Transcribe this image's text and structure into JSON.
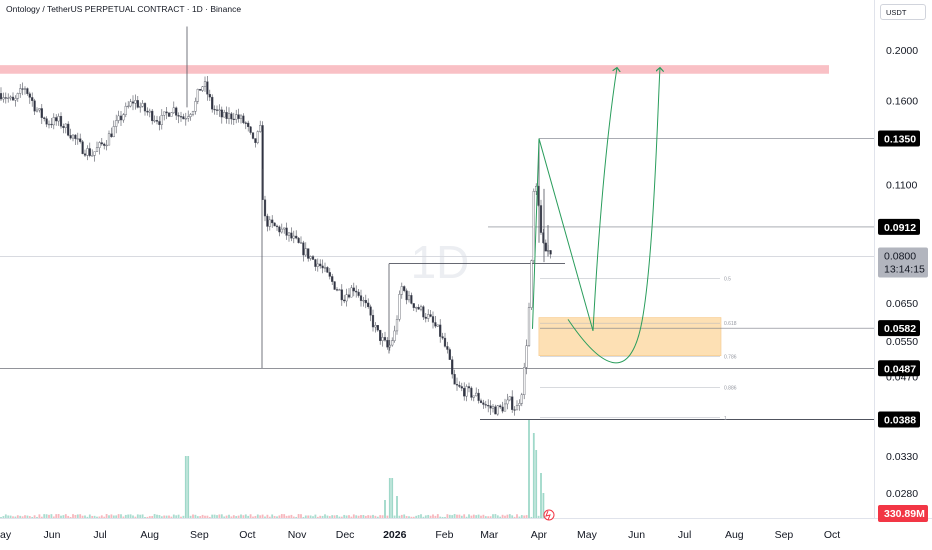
{
  "header": {
    "symbol_title": "Ontology / TetherUS PERPETUAL CONTRACT · 1D · Binance",
    "currency": "USDT"
  },
  "watermark": "1D",
  "colors": {
    "up": "#089981",
    "down": "#f23645",
    "candle": "#787b86",
    "resistance_zone": "#f9c0c5",
    "target_zone": "#fde0b4",
    "projection": "#2a9d5c",
    "label_bg": "#000000",
    "last_price_bg": "#b2b5be",
    "volume_bg": "#f23645"
  },
  "chart_data": {
    "type": "candlestick",
    "scale": "log",
    "y_ticks": [
      "0.2000",
      "0.1600",
      "0.1350",
      "0.1100",
      "0.0912",
      "0.0800",
      "0.0650",
      "0.0582",
      "0.0550",
      "0.0487",
      "0.0470",
      "0.0388",
      "0.0330",
      "0.0280"
    ],
    "x_ticks": [
      "ay",
      "Jun",
      "Jul",
      "Aug",
      "Sep",
      "Oct",
      "Nov",
      "Dec",
      "2026",
      "Feb",
      "Mar",
      "Apr",
      "May",
      "Jun",
      "Jul",
      "Aug",
      "Sep",
      "Oct"
    ],
    "price_path": [
      [
        "2025-05-01",
        0.165
      ],
      [
        "2025-05-08",
        0.158
      ],
      [
        "2025-05-15",
        0.17
      ],
      [
        "2025-05-22",
        0.154
      ],
      [
        "2025-05-29",
        0.145
      ],
      [
        "2025-06-05",
        0.146
      ],
      [
        "2025-06-12",
        0.139
      ],
      [
        "2025-06-19",
        0.13
      ],
      [
        "2025-06-26",
        0.126
      ],
      [
        "2025-07-05",
        0.134
      ],
      [
        "2025-07-15",
        0.15
      ],
      [
        "2025-07-22",
        0.16
      ],
      [
        "2025-07-30",
        0.152
      ],
      [
        "2025-08-08",
        0.146
      ],
      [
        "2025-08-15",
        0.155
      ],
      [
        "2025-08-22",
        0.148
      ],
      [
        "2025-08-29",
        0.156
      ],
      [
        "2025-09-01",
        0.168
      ],
      [
        "2025-09-04",
        0.172
      ],
      [
        "2025-09-09",
        0.155
      ],
      [
        "2025-09-16",
        0.148
      ],
      [
        "2025-09-23",
        0.15
      ],
      [
        "2025-09-30",
        0.144
      ],
      [
        "2025-10-05",
        0.131
      ],
      [
        "2025-10-09",
        0.14
      ],
      [
        "2025-10-11",
        0.095
      ],
      [
        "2025-10-15",
        0.092
      ],
      [
        "2025-10-22",
        0.09
      ],
      [
        "2025-10-30",
        0.086
      ],
      [
        "2025-11-07",
        0.081
      ],
      [
        "2025-11-15",
        0.077
      ],
      [
        "2025-11-22",
        0.072
      ],
      [
        "2025-11-30",
        0.067
      ],
      [
        "2025-12-07",
        0.07
      ],
      [
        "2025-12-14",
        0.064
      ],
      [
        "2025-12-21",
        0.057
      ],
      [
        "2025-12-28",
        0.053
      ],
      [
        "2026-01-01",
        0.057
      ],
      [
        "2026-01-05",
        0.07
      ],
      [
        "2026-01-10",
        0.066
      ],
      [
        "2026-01-15",
        0.064
      ],
      [
        "2026-01-22",
        0.061
      ],
      [
        "2026-01-29",
        0.057
      ],
      [
        "2026-02-03",
        0.052
      ],
      [
        "2026-02-07",
        0.045
      ],
      [
        "2026-02-14",
        0.044
      ],
      [
        "2026-02-21",
        0.043
      ],
      [
        "2026-02-28",
        0.041
      ],
      [
        "2026-03-07",
        0.0405
      ],
      [
        "2026-03-14",
        0.042
      ],
      [
        "2026-03-18",
        0.0405
      ],
      [
        "2026-03-22",
        0.045
      ],
      [
        "2026-03-25",
        0.058
      ],
      [
        "2026-03-27",
        0.072
      ],
      [
        "2026-03-29",
        0.11
      ],
      [
        "2026-03-31",
        0.105
      ],
      [
        "2026-04-02",
        0.092
      ],
      [
        "2026-04-04",
        0.082
      ]
    ],
    "levels": {
      "resistance_zone": [
        0.18,
        0.187
      ],
      "target_zone": [
        0.0515,
        0.061
      ],
      "last_price": 0.08,
      "countdown": "13:14:15",
      "volume_label": "330.89M"
    },
    "price_labels": [
      "0.1350",
      "0.0912",
      "0.0582",
      "0.0487",
      "0.0388"
    ],
    "fib_labels": [
      "0.5",
      "0.618",
      "0.786",
      "0.886",
      "1"
    ]
  }
}
